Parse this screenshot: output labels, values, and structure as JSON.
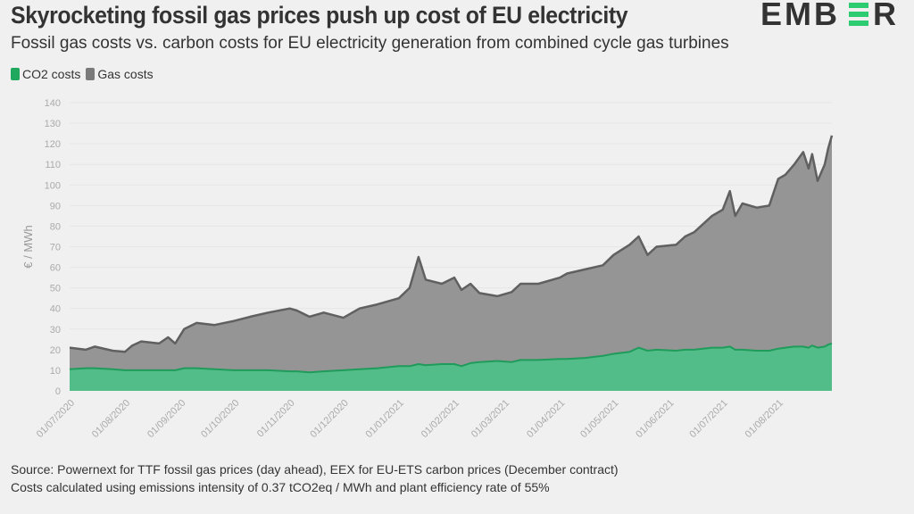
{
  "header": {
    "title": "Skyrocketing fossil gas prices push up cost of EU electricity",
    "subtitle": "Fossil gas costs vs. carbon costs for EU electricity generation from combined cycle gas turbines",
    "logo_text": "EMBER"
  },
  "colors": {
    "co2": "#52bd88",
    "co2_line": "#1f9c5b",
    "gas": "#959595",
    "gas_line": "#606060",
    "logo": "#333333",
    "logo_accent": "#2ecc71"
  },
  "legend": [
    {
      "label": "CO2 costs",
      "color": "#1fa85e"
    },
    {
      "label": "Gas costs",
      "color": "#7a7a7a"
    }
  ],
  "chart_data": {
    "type": "area",
    "stacked": true,
    "ylabel": "€ / MWh",
    "ylim": [
      0,
      140
    ],
    "yticks": [
      0,
      10,
      20,
      30,
      40,
      50,
      60,
      70,
      80,
      90,
      100,
      110,
      120,
      130,
      140
    ],
    "xlim": [
      "2020-07-01",
      "2021-08-31"
    ],
    "xticks": [
      "01/07/2020",
      "01/08/2020",
      "01/09/2020",
      "01/10/2020",
      "01/11/2020",
      "01/12/2020",
      "01/01/2021",
      "01/02/2021",
      "01/03/2021",
      "01/04/2021",
      "01/05/2021",
      "01/06/2021",
      "01/07/2021",
      "01/08/2021"
    ],
    "grid": true,
    "legend_position": "top-left",
    "x": [
      "2020-07-01",
      "2020-07-10",
      "2020-07-15",
      "2020-07-25",
      "2020-08-01",
      "2020-08-05",
      "2020-08-10",
      "2020-08-20",
      "2020-08-25",
      "2020-08-29",
      "2020-09-03",
      "2020-09-10",
      "2020-09-20",
      "2020-10-01",
      "2020-10-10",
      "2020-10-20",
      "2020-11-01",
      "2020-11-05",
      "2020-11-12",
      "2020-11-20",
      "2020-12-01",
      "2020-12-10",
      "2020-12-20",
      "2021-01-01",
      "2021-01-07",
      "2021-01-12",
      "2021-01-16",
      "2021-01-25",
      "2021-02-01",
      "2021-02-05",
      "2021-02-10",
      "2021-02-15",
      "2021-02-25",
      "2021-03-05",
      "2021-03-10",
      "2021-03-20",
      "2021-04-01",
      "2021-04-05",
      "2021-04-15",
      "2021-04-25",
      "2021-05-01",
      "2021-05-10",
      "2021-05-15",
      "2021-05-20",
      "2021-05-25",
      "2021-06-05",
      "2021-06-10",
      "2021-06-15",
      "2021-06-25",
      "2021-07-01",
      "2021-07-05",
      "2021-07-08",
      "2021-07-12",
      "2021-07-20",
      "2021-07-27",
      "2021-08-01",
      "2021-08-05",
      "2021-08-10",
      "2021-08-15",
      "2021-08-18",
      "2021-08-20",
      "2021-08-23",
      "2021-08-27",
      "2021-08-29",
      "2021-08-31"
    ],
    "series": [
      {
        "name": "CO2 costs",
        "values": [
          10.5,
          11,
          11,
          10.5,
          10,
          10,
          10,
          10,
          10,
          10,
          11,
          11,
          10.5,
          10,
          10,
          10,
          9.5,
          9.5,
          9,
          9.5,
          10,
          10.5,
          11,
          12,
          12,
          13,
          12.5,
          13,
          13,
          12,
          13.5,
          14,
          14.5,
          14,
          15,
          15,
          15.5,
          15.5,
          16,
          17,
          18,
          19,
          21,
          19.5,
          20,
          19.5,
          20,
          20,
          21,
          21,
          21.5,
          20,
          20,
          19.5,
          19.5,
          20.5,
          21,
          21.5,
          21.5,
          21,
          22,
          21,
          21.5,
          22.5,
          23
        ]
      },
      {
        "name": "Gas costs",
        "values": [
          10.5,
          9,
          10.5,
          9,
          9,
          12,
          14,
          13,
          16,
          13,
          19,
          22,
          21.5,
          24,
          26,
          28,
          30.5,
          29.5,
          27,
          28.5,
          25.5,
          29.5,
          31,
          33,
          38,
          52,
          41.5,
          39,
          42,
          37,
          38.5,
          33.5,
          31.5,
          34,
          37,
          37,
          39.5,
          41.5,
          43,
          44,
          48,
          52,
          54,
          46.5,
          50,
          51.5,
          55,
          57,
          64,
          67,
          75.5,
          65,
          71,
          69.5,
          70.5,
          82.5,
          84,
          88.5,
          94.5,
          87,
          93,
          81,
          88.5,
          95.5,
          101
        ]
      }
    ]
  },
  "source": {
    "line1": "Source: Powernext for TTF fossil gas prices (day ahead), EEX for EU-ETS carbon prices (December contract)",
    "line2": "Costs calculated using emissions intensity of 0.37 tCO2eq / MWh and plant efficiency rate of 55%"
  }
}
